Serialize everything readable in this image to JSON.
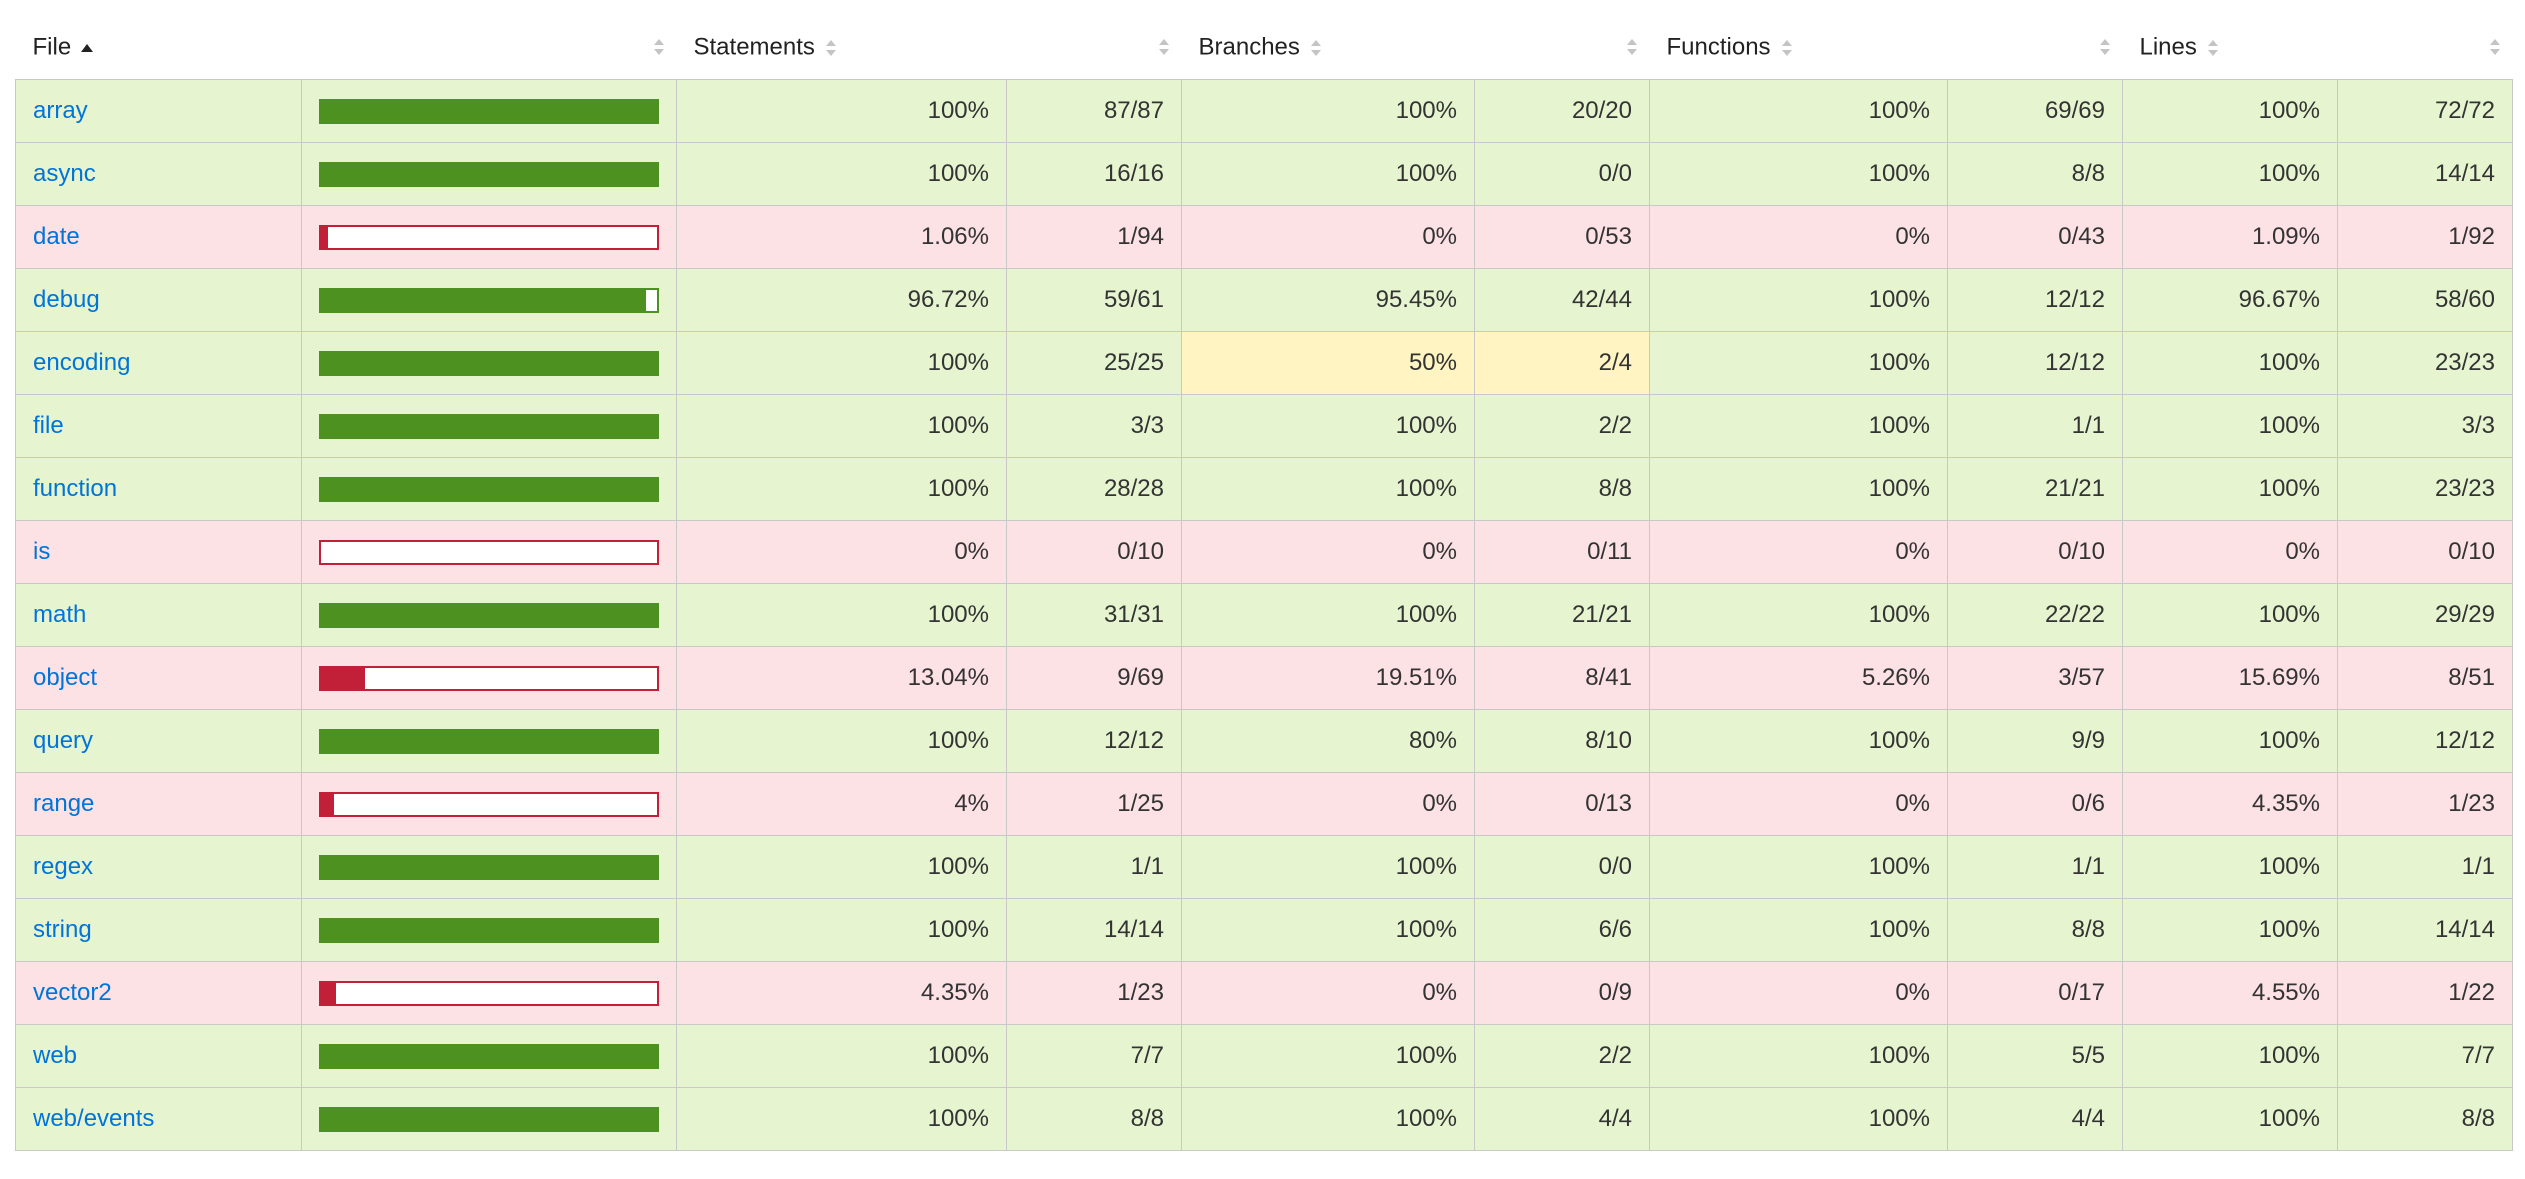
{
  "colors": {
    "high_row": "#e6f5d0",
    "low_row": "#fce1e5",
    "medium_cell": "#fff4c2",
    "high_bar": "#4d9221",
    "low_bar": "#c21f39",
    "link": "#0074d9"
  },
  "header": {
    "file": "File",
    "statements": "Statements",
    "branches": "Branches",
    "functions": "Functions",
    "lines": "Lines",
    "file_sort_icon": "sort-ascending-icon",
    "column_sort_icon": "sort-both-icon"
  },
  "rows": [
    {
      "file": "array",
      "level": "low_or_high",
      "coverage": 1.0,
      "bar": "high",
      "statements_pct": "100%",
      "statements": "87/87",
      "branches_pct": "100%",
      "branches": "20/20",
      "functions_pct": "100%",
      "functions": "69/69",
      "lines_pct": "100%",
      "lines": "72/72"
    },
    {
      "file": "async",
      "coverage": 1.0,
      "bar": "high",
      "statements_pct": "100%",
      "statements": "16/16",
      "branches_pct": "100%",
      "branches": "0/0",
      "functions_pct": "100%",
      "functions": "8/8",
      "lines_pct": "100%",
      "lines": "14/14"
    },
    {
      "file": "date",
      "coverage": 0.0106,
      "bar": "low",
      "statements_pct": "1.06%",
      "statements": "1/94",
      "branches_pct": "0%",
      "branches": "0/53",
      "functions_pct": "0%",
      "functions": "0/43",
      "lines_pct": "1.09%",
      "lines": "1/92"
    },
    {
      "file": "debug",
      "coverage": 0.9672,
      "bar": "high",
      "statements_pct": "96.72%",
      "statements": "59/61",
      "branches_pct": "95.45%",
      "branches": "42/44",
      "functions_pct": "100%",
      "functions": "12/12",
      "lines_pct": "96.67%",
      "lines": "58/60"
    },
    {
      "file": "encoding",
      "coverage": 1.0,
      "bar": "high",
      "statements_pct": "100%",
      "statements": "25/25",
      "branches_pct": "50%",
      "branches": "2/4",
      "functions_pct": "100%",
      "functions": "12/12",
      "lines_pct": "100%",
      "lines": "23/23"
    },
    {
      "file": "file",
      "coverage": 1.0,
      "bar": "high",
      "statements_pct": "100%",
      "statements": "3/3",
      "branches_pct": "100%",
      "branches": "2/2",
      "functions_pct": "100%",
      "functions": "1/1",
      "lines_pct": "100%",
      "lines": "3/3"
    },
    {
      "file": "function",
      "coverage": 1.0,
      "bar": "high",
      "statements_pct": "100%",
      "statements": "28/28",
      "branches_pct": "100%",
      "branches": "8/8",
      "functions_pct": "100%",
      "functions": "21/21",
      "lines_pct": "100%",
      "lines": "23/23"
    },
    {
      "file": "is",
      "coverage": 0.0,
      "bar": "low",
      "statements_pct": "0%",
      "statements": "0/10",
      "branches_pct": "0%",
      "branches": "0/11",
      "functions_pct": "0%",
      "functions": "0/10",
      "lines_pct": "0%",
      "lines": "0/10"
    },
    {
      "file": "math",
      "coverage": 1.0,
      "bar": "high",
      "statements_pct": "100%",
      "statements": "31/31",
      "branches_pct": "100%",
      "branches": "21/21",
      "functions_pct": "100%",
      "functions": "22/22",
      "lines_pct": "100%",
      "lines": "29/29"
    },
    {
      "file": "object",
      "coverage": 0.1304,
      "bar": "low",
      "statements_pct": "13.04%",
      "statements": "9/69",
      "branches_pct": "19.51%",
      "branches": "8/41",
      "functions_pct": "5.26%",
      "functions": "3/57",
      "lines_pct": "15.69%",
      "lines": "8/51"
    },
    {
      "file": "query",
      "coverage": 1.0,
      "bar": "high",
      "statements_pct": "100%",
      "statements": "12/12",
      "branches_pct": "80%",
      "branches": "8/10",
      "functions_pct": "100%",
      "functions": "9/9",
      "lines_pct": "100%",
      "lines": "12/12"
    },
    {
      "file": "range",
      "coverage": 0.04,
      "bar": "low",
      "statements_pct": "4%",
      "statements": "1/25",
      "branches_pct": "0%",
      "branches": "0/13",
      "functions_pct": "0%",
      "functions": "0/6",
      "lines_pct": "4.35%",
      "lines": "1/23"
    },
    {
      "file": "regex",
      "coverage": 1.0,
      "bar": "high",
      "statements_pct": "100%",
      "statements": "1/1",
      "branches_pct": "100%",
      "branches": "0/0",
      "functions_pct": "100%",
      "functions": "1/1",
      "lines_pct": "100%",
      "lines": "1/1"
    },
    {
      "file": "string",
      "coverage": 1.0,
      "bar": "high",
      "statements_pct": "100%",
      "statements": "14/14",
      "branches_pct": "100%",
      "branches": "6/6",
      "functions_pct": "100%",
      "functions": "8/8",
      "lines_pct": "100%",
      "lines": "14/14"
    },
    {
      "file": "vector2",
      "coverage": 0.0435,
      "bar": "low",
      "statements_pct": "4.35%",
      "statements": "1/23",
      "branches_pct": "0%",
      "branches": "0/9",
      "functions_pct": "0%",
      "functions": "0/17",
      "lines_pct": "4.55%",
      "lines": "1/22"
    },
    {
      "file": "web",
      "coverage": 1.0,
      "bar": "high",
      "statements_pct": "100%",
      "statements": "7/7",
      "branches_pct": "100%",
      "branches": "2/2",
      "functions_pct": "100%",
      "functions": "5/5",
      "lines_pct": "100%",
      "lines": "7/7"
    },
    {
      "file": "web/events",
      "coverage": 1.0,
      "bar": "high",
      "statements_pct": "100%",
      "statements": "8/8",
      "branches_pct": "100%",
      "branches": "4/4",
      "functions_pct": "100%",
      "functions": "4/4",
      "lines_pct": "100%",
      "lines": "8/8"
    }
  ]
}
